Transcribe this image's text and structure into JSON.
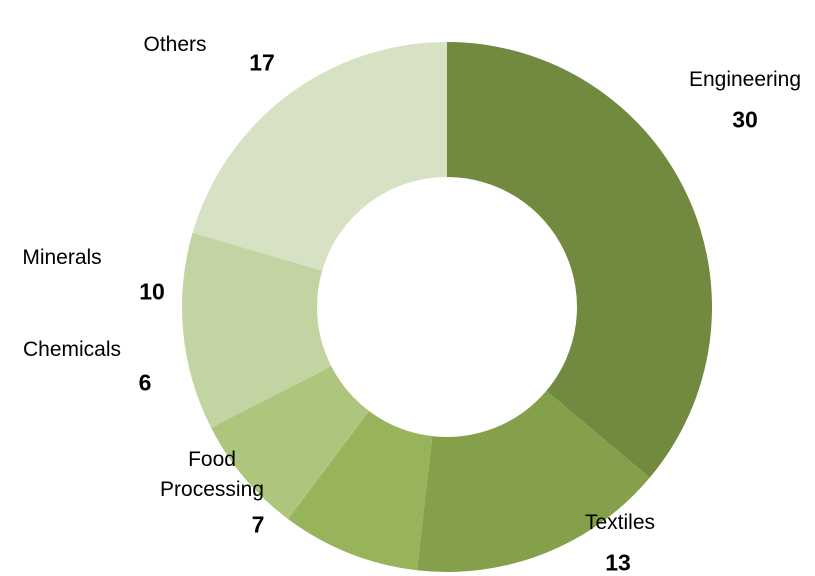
{
  "chart_data": {
    "type": "donut",
    "categories": [
      "Engineering",
      "Textiles",
      "Food Processing",
      "Chemicals",
      "Minerals",
      "Others"
    ],
    "values": [
      30,
      13,
      7,
      6,
      10,
      17
    ],
    "colors": [
      "#728a3f",
      "#84a04a",
      "#97b45a",
      "#adc57c",
      "#c3d4a3",
      "#d7e2c5"
    ]
  }
}
